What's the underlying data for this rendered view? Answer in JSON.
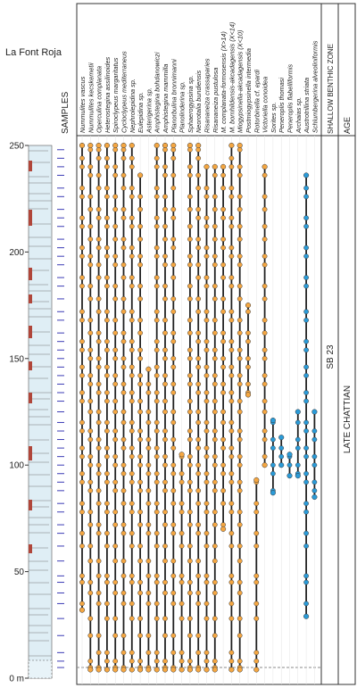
{
  "chart_data": {
    "type": "range",
    "title": "La Font Roja",
    "samples_label": "SAMPLES",
    "ylim": [
      0,
      250
    ],
    "yticks": [
      {
        "value": 0,
        "label": "0 m"
      },
      50,
      100,
      150,
      200,
      250
    ],
    "samples": [
      5,
      8,
      12,
      20,
      28,
      35,
      40,
      45,
      48,
      55,
      62,
      68,
      72,
      78,
      82,
      88,
      92,
      96,
      100,
      104,
      108,
      112,
      116,
      120,
      125,
      130,
      134,
      138,
      142,
      146,
      150,
      154,
      158,
      162,
      168,
      172,
      178,
      184,
      188,
      194,
      198,
      202,
      206,
      212,
      216,
      220,
      226,
      230,
      236,
      240,
      244,
      248
    ],
    "series": [
      {
        "name": "Nummulites vascus",
        "color": "#f5a742",
        "range": [
          32,
          250
        ]
      },
      {
        "name": "Nummulites kecskemetii",
        "color": "#f5a742",
        "range": [
          4,
          250
        ]
      },
      {
        "name": "Operculina complanata",
        "color": "#f5a742",
        "range": [
          4,
          250
        ]
      },
      {
        "name": "Heterostegina assilinoides",
        "color": "#f5a742",
        "range": [
          4,
          250
        ]
      },
      {
        "name": "Spiroclypeus margaritatus",
        "color": "#f5a742",
        "range": [
          4,
          250
        ]
      },
      {
        "name": "Cycloclypeus mediterraneus",
        "color": "#f5a742",
        "range": [
          4,
          250
        ]
      },
      {
        "name": "Nephrolepidina sp.",
        "color": "#f5a742",
        "range": [
          4,
          250
        ]
      },
      {
        "name": "Eulepidina sp.",
        "color": "#f5a742",
        "range": [
          4,
          236
        ]
      },
      {
        "name": "Asterigerina sp.",
        "color": "#f5a742",
        "range": [
          4,
          145
        ]
      },
      {
        "name": "Amphistegina bohdanowiczi",
        "color": "#f5a742",
        "range": [
          4,
          250
        ]
      },
      {
        "name": "Amphistegina mammilla",
        "color": "#f5a742",
        "range": [
          4,
          250
        ]
      },
      {
        "name": "Planorbulina bronnimanni",
        "color": "#f5a742",
        "range": [
          4,
          250
        ]
      },
      {
        "name": "Planolinderina sp.",
        "color": "#f5a742",
        "range": [
          4,
          105
        ]
      },
      {
        "name": "Sphaerogypsina sp.",
        "color": "#f5a742",
        "range": [
          4,
          250
        ]
      },
      {
        "name": "Neorotalia bundiensis",
        "color": "#f5a742",
        "range": [
          4,
          250
        ]
      },
      {
        "name": "Risananeiza crassaparies",
        "color": "#f5a742",
        "range": [
          4,
          240
        ]
      },
      {
        "name": "Risananeiza pustulosa",
        "color": "#f5a742",
        "range": [
          4,
          240
        ]
      },
      {
        "name": "M. complanata-formosensis (X>14)",
        "color": "#f5a742",
        "range": [
          70,
          240
        ]
      },
      {
        "name": "M. bornhildensis-akcadagensis (X<14)",
        "color": "#f5a742",
        "range": [
          4,
          250
        ]
      },
      {
        "name": "Miogypsinella-akcadagensis (X<10)",
        "color": "#f5a742",
        "range": [
          4,
          250
        ]
      },
      {
        "name": "Postmiogypsinella intermedia",
        "color": "#f5a742",
        "range": [
          133,
          175
        ]
      },
      {
        "name": "Rotorbinella cf. epardi",
        "color": "#f5a742",
        "range": [
          4,
          93
        ]
      },
      {
        "name": "Victoriella conoidea",
        "color": "#f5a742",
        "range": [
          100,
          240
        ]
      },
      {
        "name": "Sorites sp.",
        "color": "#2b9bd8",
        "range": [
          87,
          121
        ]
      },
      {
        "name": "Peneroplis thomasi",
        "color": "#2b9bd8",
        "range": [
          100,
          113
        ]
      },
      {
        "name": "Peneroplis flabelliformis",
        "color": "#2b9bd8",
        "range": [
          95,
          105
        ]
      },
      {
        "name": "Archaias sp.",
        "color": "#2b9bd8",
        "range": [
          95,
          125
        ]
      },
      {
        "name": "Austrotrillina striata",
        "color": "#2b9bd8",
        "range": [
          29,
          236
        ]
      },
      {
        "name": "Schlumbergerina alveoliniformis",
        "color": "#2b9bd8",
        "range": [
          85,
          125
        ]
      }
    ],
    "zone_header": "SHALLOW BENTHIC ZONE",
    "zone": "SB 23",
    "age_header": "AGE",
    "age": "LATE CHATTIAN"
  }
}
